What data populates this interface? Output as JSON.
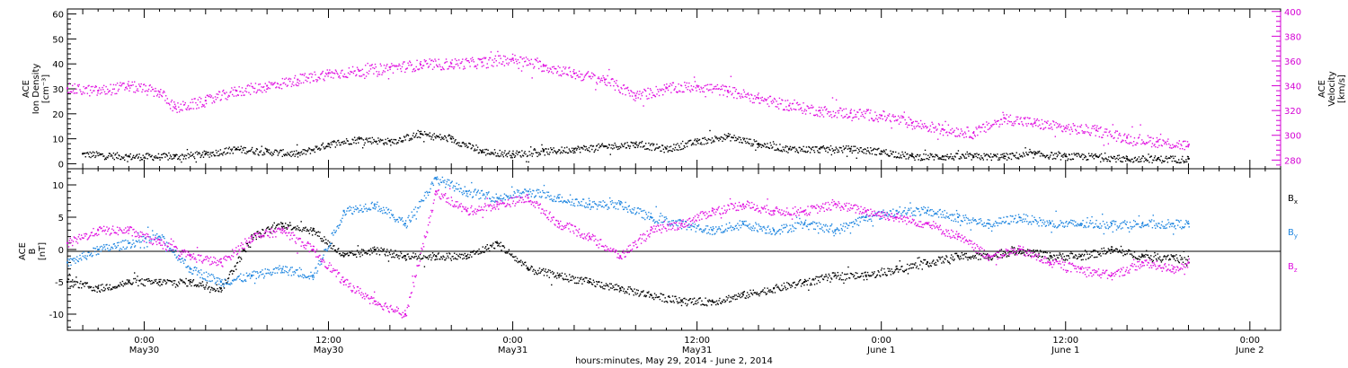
{
  "colors": {
    "density": "#000000",
    "velocity": "#e010e0",
    "bx": "#000000",
    "by": "#1f86e0",
    "bz": "#e010e0",
    "velocity_axis": "#d400d4"
  },
  "chart_data": [
    {
      "type": "scatter",
      "panel": "top",
      "title": "",
      "x_range": [
        "2014-05-29 19:00",
        "2014-06-02 02:00"
      ],
      "ylabel_left": [
        "ACE",
        "Ion Density",
        "[cm⁻³]"
      ],
      "ylabel_right": [
        "ACE",
        "Velocity",
        "[km/s]"
      ],
      "ylim_left": [
        -2,
        62
      ],
      "ylim_right": [
        273,
        402
      ],
      "yticks_left": [
        "0",
        "10",
        "20",
        "30",
        "40",
        "50",
        "60"
      ],
      "yticks_right": [
        "280",
        "300",
        "320",
        "340",
        "360",
        "380",
        "400"
      ],
      "series": [
        {
          "axis": "left",
          "x": [
            "2014-05-29 20:00",
            "2014-05-29 23:00",
            "2014-05-30 02:00",
            "2014-05-30 04:00",
            "2014-05-30 06:00",
            "2014-05-30 08:00",
            "2014-05-30 10:00",
            "2014-05-30 12:00",
            "2014-05-30 14:00",
            "2014-05-30 16:00",
            "2014-05-30 18:00",
            "2014-05-30 20:00",
            "2014-05-30 22:00",
            "2014-05-31 00:00",
            "2014-05-31 02:00",
            "2014-05-31 04:00",
            "2014-05-31 06:00",
            "2014-05-31 08:00",
            "2014-05-31 10:00",
            "2014-05-31 12:00",
            "2014-05-31 14:00",
            "2014-05-31 16:00",
            "2014-05-31 18:00",
            "2014-05-31 20:00",
            "2014-05-31 22:00",
            "2014-06-01 00:00",
            "2014-06-01 02:00",
            "2014-06-01 04:00",
            "2014-06-01 06:00",
            "2014-06-01 08:00",
            "2014-06-01 10:00",
            "2014-06-01 12:00",
            "2014-06-01 14:00",
            "2014-06-01 16:00",
            "2014-06-01 18:00",
            "2014-06-01 20:00"
          ],
          "y": [
            4,
            3,
            3,
            4,
            6,
            5,
            4,
            8,
            10,
            9,
            12,
            10,
            5,
            4,
            5,
            6,
            7,
            8,
            6,
            9,
            11,
            8,
            6,
            6,
            6,
            5,
            3,
            3,
            3,
            3,
            4,
            3,
            3,
            2,
            2,
            2
          ]
        },
        {
          "axis": "right",
          "x": [
            "2014-05-29 19:00",
            "2014-05-29 21:00",
            "2014-05-29 23:00",
            "2014-05-30 01:00",
            "2014-05-30 02:00",
            "2014-05-30 04:00",
            "2014-05-30 06:00",
            "2014-05-30 08:00",
            "2014-05-30 10:00",
            "2014-05-30 12:00",
            "2014-05-30 14:00",
            "2014-05-30 16:00",
            "2014-05-30 18:00",
            "2014-05-30 20:00",
            "2014-05-30 22:00",
            "2014-05-31 00:00",
            "2014-05-31 02:00",
            "2014-05-31 04:00",
            "2014-05-31 06:00",
            "2014-05-31 08:00",
            "2014-05-31 10:00",
            "2014-05-31 12:00",
            "2014-05-31 14:00",
            "2014-05-31 16:00",
            "2014-05-31 18:00",
            "2014-05-31 20:00",
            "2014-05-31 22:00",
            "2014-06-01 00:00",
            "2014-06-01 02:00",
            "2014-06-01 04:00",
            "2014-06-01 06:00",
            "2014-06-01 08:00",
            "2014-06-01 10:00",
            "2014-06-01 12:00",
            "2014-06-01 14:00",
            "2014-06-01 16:00",
            "2014-06-01 18:00",
            "2014-06-01 20:00"
          ],
          "y": [
            338,
            336,
            340,
            335,
            322,
            328,
            336,
            340,
            345,
            350,
            352,
            355,
            357,
            358,
            359,
            362,
            356,
            350,
            345,
            332,
            338,
            340,
            336,
            330,
            324,
            320,
            318,
            316,
            310,
            305,
            302,
            314,
            310,
            306,
            304,
            298,
            295,
            292
          ]
        }
      ]
    },
    {
      "type": "scatter",
      "panel": "bottom",
      "title": "",
      "ylabel_left": [
        "ACE",
        "B",
        "[nT]"
      ],
      "ylim": [
        -12.5,
        12.5
      ],
      "yticks": [
        "-10",
        "-5",
        "0",
        "5",
        "10"
      ],
      "xticks": [
        {
          "time": "0:00",
          "date": "May30"
        },
        {
          "time": "12:00",
          "date": "May30"
        },
        {
          "time": "0:00",
          "date": "May31"
        },
        {
          "time": "12:00",
          "date": "May31"
        },
        {
          "time": "0:00",
          "date": "June 1"
        },
        {
          "time": "12:00",
          "date": "June 1"
        },
        {
          "time": "0:00",
          "date": "June 2"
        }
      ],
      "xlabel": "hours:minutes, May 29, 2014 - June  2, 2014",
      "series": [
        {
          "name": "Bx",
          "x": [
            "2014-05-29 19:00",
            "2014-05-29 21:00",
            "2014-05-29 23:00",
            "2014-05-30 01:00",
            "2014-05-30 03:00",
            "2014-05-30 05:00",
            "2014-05-30 07:00",
            "2014-05-30 09:00",
            "2014-05-30 11:00",
            "2014-05-30 13:00",
            "2014-05-30 15:00",
            "2014-05-30 17:00",
            "2014-05-30 19:00",
            "2014-05-30 21:00",
            "2014-05-30 23:00",
            "2014-05-31 01:00",
            "2014-05-31 03:00",
            "2014-05-31 05:00",
            "2014-05-31 07:00",
            "2014-05-31 09:00",
            "2014-05-31 11:00",
            "2014-05-31 13:00",
            "2014-05-31 15:00",
            "2014-05-31 17:00",
            "2014-05-31 19:00",
            "2014-05-31 21:00",
            "2014-05-31 23:00",
            "2014-06-01 01:00",
            "2014-06-01 03:00",
            "2014-06-01 05:00",
            "2014-06-01 07:00",
            "2014-06-01 09:00",
            "2014-06-01 11:00",
            "2014-06-01 13:00",
            "2014-06-01 15:00",
            "2014-06-01 17:00",
            "2014-06-01 19:00",
            "2014-06-01 20:00"
          ],
          "y": [
            -5,
            -6,
            -5,
            -5,
            -5,
            -6,
            2,
            4,
            3,
            -1,
            0,
            -1,
            -1,
            -1,
            1,
            -3,
            -4,
            -5,
            -6,
            -7,
            -8,
            -8,
            -7,
            -6,
            -5,
            -4,
            -4,
            -3,
            -2,
            -1,
            -1,
            0,
            -1,
            -1,
            0,
            -1,
            -1,
            -2
          ]
        },
        {
          "name": "By",
          "x": [
            "2014-05-29 19:00",
            "2014-05-29 21:00",
            "2014-05-29 23:00",
            "2014-05-30 01:00",
            "2014-05-30 03:00",
            "2014-05-30 05:00",
            "2014-05-30 07:00",
            "2014-05-30 09:00",
            "2014-05-30 11:00",
            "2014-05-30 13:00",
            "2014-05-30 15:00",
            "2014-05-30 17:00",
            "2014-05-30 19:00",
            "2014-05-30 21:00",
            "2014-05-30 23:00",
            "2014-05-31 01:00",
            "2014-05-31 03:00",
            "2014-05-31 05:00",
            "2014-05-31 07:00",
            "2014-05-31 09:00",
            "2014-05-31 11:00",
            "2014-05-31 13:00",
            "2014-05-31 15:00",
            "2014-05-31 17:00",
            "2014-05-31 19:00",
            "2014-05-31 21:00",
            "2014-05-31 23:00",
            "2014-06-01 01:00",
            "2014-06-01 03:00",
            "2014-06-01 05:00",
            "2014-06-01 07:00",
            "2014-06-01 09:00",
            "2014-06-01 11:00",
            "2014-06-01 13:00",
            "2014-06-01 15:00",
            "2014-06-01 17:00",
            "2014-06-01 19:00",
            "2014-06-01 20:00"
          ],
          "y": [
            -2,
            0,
            1,
            2,
            -3,
            -5,
            -4,
            -3,
            -4,
            6,
            7,
            4,
            11,
            9,
            8,
            9,
            8,
            7,
            7,
            5,
            4,
            3,
            4,
            3,
            4,
            3,
            5,
            6,
            6,
            5,
            4,
            5,
            4,
            4,
            4,
            4,
            4,
            4
          ]
        },
        {
          "name": "Bz",
          "x": [
            "2014-05-29 19:00",
            "2014-05-29 21:00",
            "2014-05-29 23:00",
            "2014-05-30 01:00",
            "2014-05-30 03:00",
            "2014-05-30 05:00",
            "2014-05-30 07:00",
            "2014-05-30 09:00",
            "2014-05-30 11:00",
            "2014-05-30 13:00",
            "2014-05-30 15:00",
            "2014-05-30 17:00",
            "2014-05-30 19:00",
            "2014-05-30 21:00",
            "2014-05-30 23:00",
            "2014-05-31 01:00",
            "2014-05-31 03:00",
            "2014-05-31 05:00",
            "2014-05-31 07:00",
            "2014-05-31 09:00",
            "2014-05-31 11:00",
            "2014-05-31 13:00",
            "2014-05-31 15:00",
            "2014-05-31 17:00",
            "2014-05-31 19:00",
            "2014-05-31 21:00",
            "2014-05-31 23:00",
            "2014-06-01 01:00",
            "2014-06-01 03:00",
            "2014-06-01 05:00",
            "2014-06-01 07:00",
            "2014-06-01 09:00",
            "2014-06-01 11:00",
            "2014-06-01 13:00",
            "2014-06-01 15:00",
            "2014-06-01 17:00",
            "2014-06-01 19:00",
            "2014-06-01 20:00"
          ],
          "y": [
            1,
            3,
            3,
            1,
            -1,
            -2,
            2,
            3,
            0,
            -5,
            -8,
            -10,
            9,
            6,
            7,
            8,
            4,
            2,
            -1,
            3,
            4,
            6,
            7,
            6,
            6,
            7,
            6,
            5,
            4,
            2,
            -1,
            0,
            -2,
            -3,
            -4,
            -2,
            -3,
            -2
          ]
        }
      ]
    }
  ]
}
